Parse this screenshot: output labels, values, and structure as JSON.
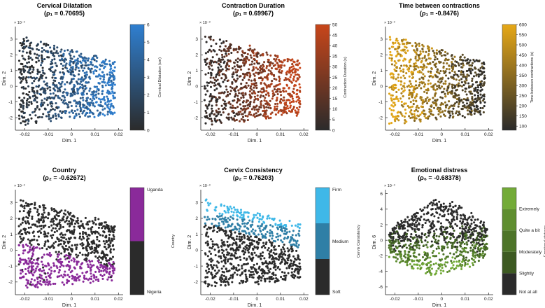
{
  "figure": {
    "axis_exponent": "× 10⁻³",
    "colors": {
      "axis": "#222222",
      "point_dark": "#2b2b2b"
    }
  },
  "chart_data": [
    {
      "id": "cervical-dilatation",
      "type": "scatter",
      "title": "Cervical Dilatation",
      "subtitle": "(ρ₁ = 0.70695)",
      "xlabel": "Dim. 1",
      "ylabel": "Dim. 2",
      "xlim": [
        -0.024,
        0.022
      ],
      "ylim": [
        -2.8,
        3.8
      ],
      "xticks": [
        -0.02,
        -0.01,
        0,
        0.01,
        0.02
      ],
      "xtick_labels": [
        "-0.02",
        "-0.01",
        "0",
        "0.01",
        "0.02"
      ],
      "yticks": [
        -2,
        -1,
        0,
        1,
        2,
        3
      ],
      "ytick_labels": [
        "-2",
        "-1",
        "0",
        "1",
        "2",
        "3"
      ],
      "colorbar": {
        "type": "continuous",
        "label": "Cervical Dilatation (cm)",
        "range": [
          0,
          6
        ],
        "ticks": [
          "0",
          "1",
          "2",
          "3",
          "4",
          "5",
          "6"
        ],
        "colors": [
          "#2b2b2b",
          "#2f7fd0"
        ]
      },
      "cloud": {
        "shape": "band",
        "n": 900,
        "xdrift": 1.4,
        "seed": 11
      }
    },
    {
      "id": "contraction-duration",
      "type": "scatter",
      "title": "Contraction Duration",
      "subtitle": "(ρ₁ = 0.69967)",
      "xlabel": "Dim. 1",
      "ylabel": "Dim. 2",
      "xlim": [
        -0.024,
        0.022
      ],
      "ylim": [
        -2.8,
        3.8
      ],
      "xticks": [
        -0.02,
        -0.01,
        0,
        0.01,
        0.02
      ],
      "xtick_labels": [
        "-0.02",
        "-0.01",
        "0",
        "0.01",
        "0.02"
      ],
      "yticks": [
        -2,
        -1,
        0,
        1,
        2,
        3
      ],
      "ytick_labels": [
        "-2",
        "-1",
        "0",
        "1",
        "2",
        "3"
      ],
      "colorbar": {
        "type": "continuous",
        "label": "Contraction Duration (s)",
        "range": [
          0,
          50
        ],
        "ticks": [
          "0",
          "5",
          "10",
          "15",
          "20",
          "25",
          "30",
          "35",
          "40",
          "45",
          "50"
        ],
        "colors": [
          "#2b2b2b",
          "#c8461a"
        ]
      },
      "cloud": {
        "shape": "band",
        "n": 900,
        "xdrift": 1.4,
        "seed": 23
      }
    },
    {
      "id": "time-between-contractions",
      "type": "scatter",
      "title": "Time between contractions",
      "subtitle": "(ρ₁ = -0.8476)",
      "xlabel": "Dim. 1",
      "ylabel": "Dim. 2",
      "xlim": [
        -0.024,
        0.022
      ],
      "ylim": [
        -2.8,
        3.8
      ],
      "xticks": [
        -0.02,
        -0.01,
        0,
        0.01,
        0.02
      ],
      "xtick_labels": [
        "-0.02",
        "-0.01",
        "0",
        "0.01",
        "0.02"
      ],
      "yticks": [
        -2,
        -1,
        0,
        1,
        2,
        3
      ],
      "ytick_labels": [
        "-2",
        "-1",
        "0",
        "1",
        "2",
        "3"
      ],
      "colorbar": {
        "type": "continuous",
        "label": "Time between contractions (s)",
        "range": [
          80,
          600
        ],
        "ticks": [
          "100",
          "150",
          "200",
          "250",
          "300",
          "350",
          "400",
          "450",
          "500",
          "550",
          "600"
        ],
        "colors": [
          "#2b2b2b",
          "#e6a817"
        ]
      },
      "cloud": {
        "shape": "band",
        "n": 900,
        "xdrift": -1.6,
        "seed": 37
      }
    },
    {
      "id": "country",
      "type": "scatter",
      "title": "Country",
      "subtitle": "(ρ₂ = -0.62672)",
      "xlabel": "Dim. 1",
      "ylabel": "Dim. 2",
      "xlim": [
        -0.024,
        0.022
      ],
      "ylim": [
        -2.8,
        3.8
      ],
      "xticks": [
        -0.02,
        -0.01,
        0,
        0.01,
        0.02
      ],
      "xtick_labels": [
        "-0.02",
        "-0.01",
        "0",
        "0.01",
        "0.02"
      ],
      "yticks": [
        -2,
        -1,
        0,
        1,
        2,
        3
      ],
      "ytick_labels": [
        "-2",
        "-1",
        "0",
        "1",
        "2",
        "3"
      ],
      "colorbar": {
        "type": "categorical",
        "label": "Country",
        "categories": [
          "Nigeria",
          "Uganda"
        ],
        "colors": [
          "#2b2b2b",
          "#8a2a9a"
        ]
      },
      "cloud": {
        "shape": "band",
        "n": 900,
        "split": "country",
        "seed": 41
      }
    },
    {
      "id": "cervix-consistency",
      "type": "scatter",
      "title": "Cervix Consistency",
      "subtitle": "(ρ₂ = 0.76203)",
      "xlabel": "Dim. 1",
      "ylabel": "Dim. 2",
      "xlim": [
        -0.024,
        0.022
      ],
      "ylim": [
        -2.8,
        3.8
      ],
      "xticks": [
        -0.02,
        -0.01,
        0,
        0.01,
        0.02
      ],
      "xtick_labels": [
        "-0.02",
        "-0.01",
        "0",
        "0.01",
        "0.02"
      ],
      "yticks": [
        -2,
        -1,
        0,
        1,
        2,
        3
      ],
      "ytick_labels": [
        "-2",
        "-1",
        "0",
        "1",
        "2",
        "3"
      ],
      "colorbar": {
        "type": "categorical",
        "label": "Cervix Consistency",
        "categories": [
          "Soft",
          "Medium",
          "Firm"
        ],
        "colors": [
          "#2b2b2b",
          "#2f7fa6",
          "#3fb8e8"
        ]
      },
      "cloud": {
        "shape": "band",
        "n": 900,
        "split": "consistency",
        "seed": 53
      }
    },
    {
      "id": "emotional-distress",
      "type": "scatter",
      "title": "Emotional distress",
      "subtitle": "(ρ₆ = -0.68378)",
      "xlabel": "Dim. 1",
      "ylabel": "Dim. 6",
      "xlim": [
        -0.024,
        0.022
      ],
      "ylim": [
        -7,
        6.5
      ],
      "xticks": [
        -0.02,
        -0.01,
        0,
        0.01,
        0.02
      ],
      "xtick_labels": [
        "-0.02",
        "-0.01",
        "0",
        "0.01",
        "0.02"
      ],
      "yticks": [
        -6,
        -4,
        -2,
        0,
        2,
        4,
        6
      ],
      "ytick_labels": [
        "-6",
        "-4",
        "-2",
        "0",
        "2",
        "4",
        "6"
      ],
      "colorbar": {
        "type": "categorical",
        "label": "Emotional distress",
        "categories": [
          "Not at all",
          "Slightly",
          "Moderately",
          "Quite a bit",
          "Extremely"
        ],
        "colors": [
          "#2b2b2b",
          "#3d5a22",
          "#4d7429",
          "#5f8e30",
          "#73ab38"
        ]
      },
      "cloud": {
        "shape": "arch",
        "n": 900,
        "seed": 67
      }
    }
  ]
}
